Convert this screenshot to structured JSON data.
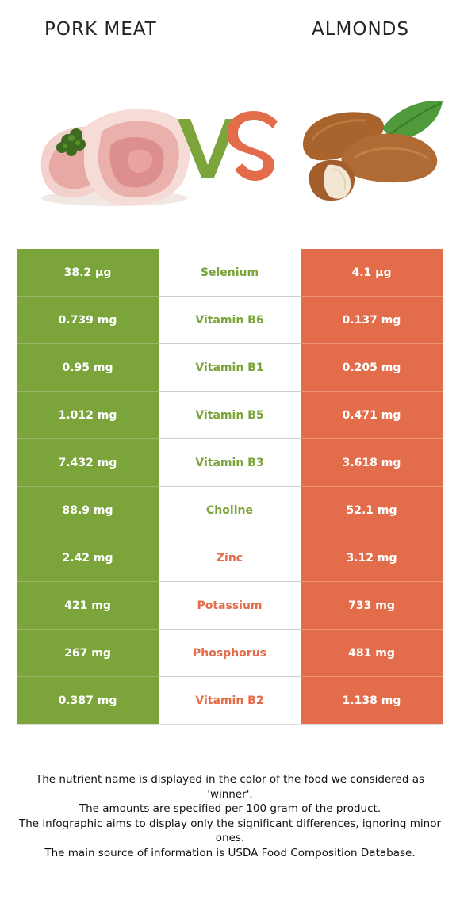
{
  "header": {
    "left_title": "PORK MEAT",
    "right_title": "ALMONDS",
    "vs_text": "VS"
  },
  "colors": {
    "winner_left": "#7ba43a",
    "winner_right": "#e36c4a"
  },
  "nutrients": [
    {
      "left": "38.2 µg",
      "name": "Selenium",
      "right": "4.1 µg",
      "winner": "left"
    },
    {
      "left": "0.739 mg",
      "name": "Vitamin B6",
      "right": "0.137 mg",
      "winner": "left"
    },
    {
      "left": "0.95 mg",
      "name": "Vitamin B1",
      "right": "0.205 mg",
      "winner": "left"
    },
    {
      "left": "1.012 mg",
      "name": "Vitamin B5",
      "right": "0.471 mg",
      "winner": "left"
    },
    {
      "left": "7.432 mg",
      "name": "Vitamin B3",
      "right": "3.618 mg",
      "winner": "left"
    },
    {
      "left": "88.9 mg",
      "name": "Choline",
      "right": "52.1 mg",
      "winner": "left"
    },
    {
      "left": "2.42 mg",
      "name": "Zinc",
      "right": "3.12 mg",
      "winner": "right"
    },
    {
      "left": "421 mg",
      "name": "Potassium",
      "right": "733 mg",
      "winner": "right"
    },
    {
      "left": "267 mg",
      "name": "Phosphorus",
      "right": "481 mg",
      "winner": "right"
    },
    {
      "left": "0.387 mg",
      "name": "Vitamin B2",
      "right": "1.138 mg",
      "winner": "right"
    }
  ],
  "footnotes": [
    "The nutrient name is displayed in the color of the food we considered as 'winner'.",
    "The amounts are specified per 100 gram of the product.",
    "The infographic aims to display only the significant differences, ignoring minor ones.",
    "The main source of information is USDA Food Composition Database."
  ]
}
